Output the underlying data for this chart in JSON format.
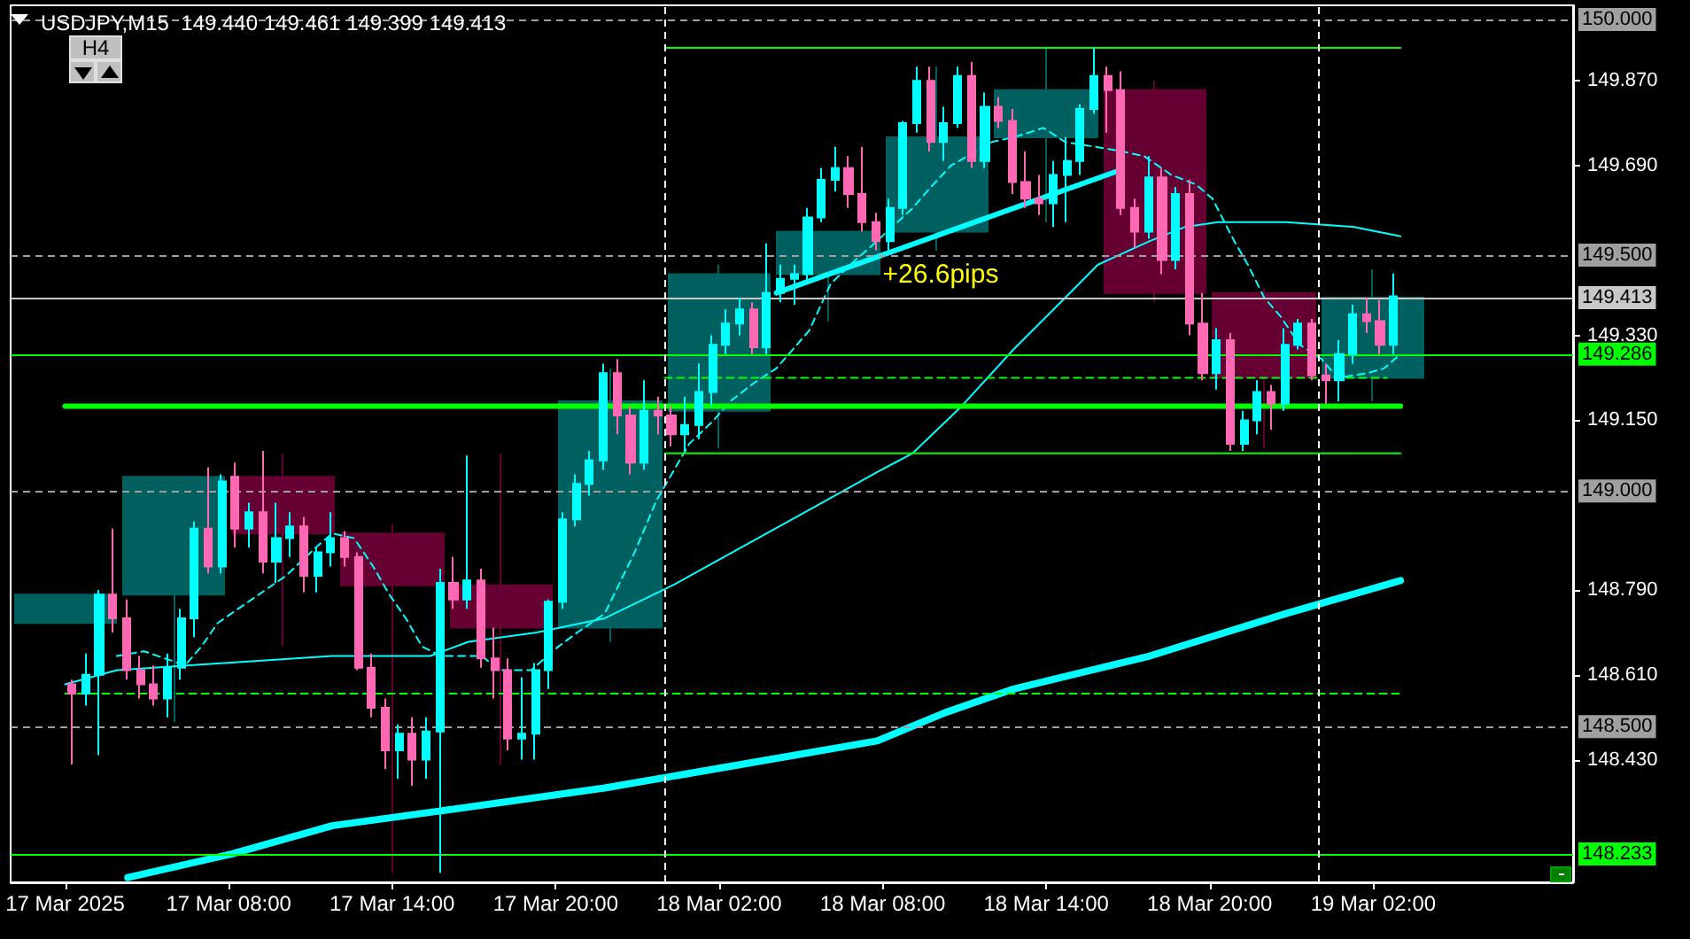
{
  "chart_data": {
    "type": "candlestick",
    "title": "USDJPY,M15  149.440 149.461 149.399 149.413",
    "xlim": [
      "2025-03-17T00:00",
      "2025-03-19T09:20"
    ],
    "ylim": [
      148.17,
      150.03
    ],
    "xticks": [
      {
        "value": "2025-03-17T02:00",
        "label": "17 Mar 2025"
      },
      {
        "value": "2025-03-17T08:00",
        "label": "17 Mar 08:00"
      },
      {
        "value": "2025-03-17T14:00",
        "label": "17 Mar 14:00"
      },
      {
        "value": "2025-03-17T20:00",
        "label": "17 Mar 20:00"
      },
      {
        "value": "2025-03-18T02:00",
        "label": "18 Mar 02:00"
      },
      {
        "value": "2025-03-18T08:00",
        "label": "18 Mar 08:00"
      },
      {
        "value": "2025-03-18T14:00",
        "label": "18 Mar 14:00"
      },
      {
        "value": "2025-03-18T20:00",
        "label": "18 Mar 20:00"
      },
      {
        "value": "2025-03-19T02:00",
        "label": "19 Mar 02:00"
      }
    ],
    "yticks": [
      {
        "value": 149.87,
        "label": "149.870"
      },
      {
        "value": 149.69,
        "label": "149.690"
      },
      {
        "value": 149.33,
        "label": "149.330"
      },
      {
        "value": 149.15,
        "label": "149.150"
      },
      {
        "value": 148.79,
        "label": "148.790"
      },
      {
        "value": 148.61,
        "label": "148.610"
      },
      {
        "value": 148.43,
        "label": "148.430"
      }
    ],
    "grid": false,
    "series": [
      {
        "colors": [
          "#006060",
          "#006060",
          "#660033",
          "#660033",
          "#660033",
          "#006060",
          "#006060",
          "#006060",
          "#006060",
          "#006060",
          "#660033",
          "#660033",
          "#006060"
        ],
        "x": [
          "2025-03-17T02:00",
          "2025-03-17T06:00",
          "2025-03-17T10:00",
          "2025-03-17T14:00",
          "2025-03-17T18:00",
          "2025-03-17T22:00",
          "2025-03-18T02:00",
          "2025-03-18T06:00",
          "2025-03-18T10:00",
          "2025-03-18T14:00",
          "2025-03-18T18:00",
          "2025-03-18T22:00",
          "2025-03-19T02:00"
        ],
        "ohlc": [
          [
            148.72,
            148.78,
            148.72,
            148.78
          ],
          [
            148.78,
            149.03,
            148.51,
            149.03
          ],
          [
            149.03,
            149.08,
            148.67,
            148.91
          ],
          [
            148.91,
            148.93,
            148.19,
            148.8
          ],
          [
            148.8,
            149.08,
            148.42,
            148.71
          ],
          [
            148.71,
            149.26,
            148.68,
            149.19
          ],
          [
            149.17,
            149.48,
            149.09,
            149.46
          ],
          [
            149.46,
            149.55,
            149.36,
            149.55
          ],
          [
            149.55,
            149.9,
            149.51,
            149.75
          ],
          [
            149.75,
            149.94,
            149.57,
            149.85
          ],
          [
            149.85,
            149.87,
            149.4,
            149.42
          ],
          [
            149.42,
            149.43,
            149.09,
            149.24
          ],
          [
            149.24,
            149.47,
            149.19,
            149.41
          ]
        ]
      },
      {
        "colors": [
          "#ff69b4",
          "#00ffff",
          "#00ffff",
          "#ff69b4",
          "#ff69b4",
          "#ff69b4",
          "#ff69b4",
          "#00ffff",
          "#00ffff",
          "#00ffff",
          "#ff69b4",
          "#00ffff",
          "#ff69b4",
          "#00ffff",
          "#ff69b4",
          "#00ffff",
          "#00ffff",
          "#ff69b4",
          "#00ffff",
          "#00ffff",
          "#ff69b4",
          "#ff69b4",
          "#ff69b4",
          "#ff69b4",
          "#00ffff",
          "#ff69b4",
          "#00ffff",
          "#00ffff",
          "#ff69b4",
          "#00ffff",
          "#ff69b4",
          "#ff69b4",
          "#ff69b4",
          "#00ffff",
          "#00ffff",
          "#00ffff",
          "#00ffff",
          "#00ffff",
          "#00ffff",
          "#00ffff",
          "#ff69b4",
          "#ff69b4",
          "#00ffff",
          "#ff69b4",
          "#ff69b4",
          "#00ffff",
          "#00ffff",
          "#00ffff",
          "#00ffff",
          "#00ffff",
          "#ff69b4",
          "#00ffff",
          "#00ffff",
          "#00ffff",
          "#00ffff",
          "#00ffff",
          "#00ffff",
          "#ff69b4",
          "#ff69b4",
          "#ff69b4",
          "#00ffff",
          "#00ffff",
          "#00ffff",
          "#ff69b4",
          "#00ffff",
          "#00ffff",
          "#ff69b4",
          "#00ffff",
          "#ff69b4",
          "#ff69b4",
          "#ff69b4",
          "#ff69b4",
          "#00ffff",
          "#00ffff",
          "#00ffff",
          "#00ffff",
          "#ff69b4",
          "#ff69b4",
          "#ff69b4",
          "#00ffff",
          "#ff69b4",
          "#00ffff",
          "#ff69b4",
          "#ff69b4",
          "#00ffff",
          "#ff69b4",
          "#00ffff",
          "#00ffff",
          "#ff69b4",
          "#00ffff",
          "#00ffff",
          "#ff69b4",
          "#ff69b4",
          "#00ffff",
          "#00ffff",
          "#ff69b4",
          "#ff69b4",
          "#00ffff"
        ],
        "x": [
          "2025-03-17T02:15",
          "2025-03-17T02:45",
          "2025-03-17T03:15",
          "2025-03-17T03:45",
          "2025-03-17T04:15",
          "2025-03-17T04:45",
          "2025-03-17T05:15",
          "2025-03-17T05:45",
          "2025-03-17T06:15",
          "2025-03-17T06:45",
          "2025-03-17T07:15",
          "2025-03-17T07:45",
          "2025-03-17T08:15",
          "2025-03-17T08:45",
          "2025-03-17T09:15",
          "2025-03-17T09:45",
          "2025-03-17T10:15",
          "2025-03-17T10:45",
          "2025-03-17T11:15",
          "2025-03-17T11:45",
          "2025-03-17T12:15",
          "2025-03-17T12:45",
          "2025-03-17T13:15",
          "2025-03-17T13:45",
          "2025-03-17T14:15",
          "2025-03-17T14:45",
          "2025-03-17T15:15",
          "2025-03-17T15:45",
          "2025-03-17T16:15",
          "2025-03-17T16:45",
          "2025-03-17T17:15",
          "2025-03-17T17:45",
          "2025-03-17T18:15",
          "2025-03-17T18:45",
          "2025-03-17T19:15",
          "2025-03-17T19:45",
          "2025-03-17T20:15",
          "2025-03-17T20:45",
          "2025-03-17T21:15",
          "2025-03-17T21:45",
          "2025-03-17T22:15",
          "2025-03-17T22:45",
          "2025-03-17T23:15",
          "2025-03-17T23:45",
          "2025-03-18T00:15",
          "2025-03-18T00:45",
          "2025-03-18T01:15",
          "2025-03-18T01:45",
          "2025-03-18T02:15",
          "2025-03-18T02:45",
          "2025-03-18T03:15",
          "2025-03-18T03:45",
          "2025-03-18T04:15",
          "2025-03-18T04:45",
          "2025-03-18T05:15",
          "2025-03-18T05:45",
          "2025-03-18T06:15",
          "2025-03-18T06:45",
          "2025-03-18T07:15",
          "2025-03-18T07:45",
          "2025-03-18T08:15",
          "2025-03-18T08:45",
          "2025-03-18T09:15",
          "2025-03-18T09:45",
          "2025-03-18T10:15",
          "2025-03-18T10:45",
          "2025-03-18T11:15",
          "2025-03-18T11:45",
          "2025-03-18T12:15",
          "2025-03-18T12:45",
          "2025-03-18T13:15",
          "2025-03-18T13:45",
          "2025-03-18T14:15",
          "2025-03-18T14:45",
          "2025-03-18T15:15",
          "2025-03-18T15:45",
          "2025-03-18T16:15",
          "2025-03-18T16:45",
          "2025-03-18T17:15",
          "2025-03-18T17:45",
          "2025-03-18T18:15",
          "2025-03-18T18:45",
          "2025-03-18T19:15",
          "2025-03-18T19:45",
          "2025-03-18T20:15",
          "2025-03-18T20:45",
          "2025-03-18T21:15",
          "2025-03-18T21:45",
          "2025-03-18T22:15",
          "2025-03-18T22:45",
          "2025-03-18T23:15",
          "2025-03-18T23:45",
          "2025-03-19T00:15",
          "2025-03-19T00:45",
          "2025-03-19T01:15",
          "2025-03-19T01:45",
          "2025-03-19T02:15",
          "2025-03-19T02:45"
        ],
        "ohlc": [
          [
            148.59,
            148.6,
            148.42,
            148.57
          ],
          [
            148.57,
            148.655,
            148.545,
            148.61
          ],
          [
            148.61,
            148.79,
            148.44,
            148.78
          ],
          [
            148.78,
            148.92,
            148.7,
            148.73
          ],
          [
            148.73,
            148.77,
            148.6,
            148.62
          ],
          [
            148.62,
            148.65,
            148.56,
            148.59
          ],
          [
            148.59,
            148.63,
            148.545,
            148.56
          ],
          [
            148.56,
            148.655,
            148.52,
            148.625
          ],
          [
            148.625,
            148.75,
            148.6,
            148.73
          ],
          [
            148.73,
            148.935,
            148.69,
            148.92
          ],
          [
            148.92,
            149.05,
            148.825,
            148.84
          ],
          [
            148.84,
            149.035,
            148.825,
            149.02
          ],
          [
            149.03,
            149.06,
            148.88,
            148.92
          ],
          [
            148.92,
            148.975,
            148.88,
            148.955
          ],
          [
            148.955,
            149.085,
            148.825,
            148.85
          ],
          [
            148.85,
            148.975,
            148.805,
            148.9
          ],
          [
            148.9,
            148.955,
            148.86,
            148.925
          ],
          [
            148.925,
            148.945,
            148.785,
            148.82
          ],
          [
            148.82,
            148.88,
            148.785,
            148.87
          ],
          [
            148.87,
            148.955,
            148.84,
            148.9
          ],
          [
            148.9,
            148.915,
            148.84,
            148.86
          ],
          [
            148.86,
            148.87,
            148.62,
            148.625
          ],
          [
            148.625,
            148.655,
            148.52,
            148.54
          ],
          [
            148.54,
            148.56,
            148.41,
            148.45
          ],
          [
            148.45,
            148.505,
            148.39,
            148.485
          ],
          [
            148.485,
            148.52,
            148.375,
            148.43
          ],
          [
            148.43,
            148.52,
            148.39,
            148.49
          ],
          [
            148.49,
            148.835,
            148.19,
            148.805
          ],
          [
            148.805,
            148.86,
            148.75,
            148.77
          ],
          [
            148.77,
            149.075,
            148.75,
            148.81
          ],
          [
            148.81,
            148.835,
            148.625,
            148.645
          ],
          [
            148.645,
            148.71,
            148.56,
            148.62
          ],
          [
            148.62,
            148.645,
            148.45,
            148.475
          ],
          [
            148.475,
            148.605,
            148.43,
            148.485
          ],
          [
            148.485,
            148.635,
            148.43,
            148.62
          ],
          [
            148.62,
            148.77,
            148.58,
            148.765
          ],
          [
            148.765,
            148.955,
            148.75,
            148.94
          ],
          [
            148.94,
            149.035,
            148.925,
            149.015
          ],
          [
            149.015,
            149.085,
            148.99,
            149.065
          ],
          [
            149.065,
            149.27,
            149.045,
            149.25
          ],
          [
            149.25,
            149.28,
            149.12,
            149.16
          ],
          [
            149.16,
            149.18,
            149.035,
            149.06
          ],
          [
            149.06,
            149.235,
            149.045,
            149.17
          ],
          [
            149.17,
            149.2,
            149.12,
            149.16
          ],
          [
            149.16,
            149.18,
            149.095,
            149.12
          ],
          [
            149.12,
            149.2,
            149.085,
            149.14
          ],
          [
            149.14,
            149.27,
            149.11,
            149.21
          ],
          [
            149.21,
            149.33,
            149.18,
            149.31
          ],
          [
            149.31,
            149.385,
            149.29,
            149.355
          ],
          [
            149.355,
            149.41,
            149.33,
            149.385
          ],
          [
            149.385,
            149.4,
            149.29,
            149.305
          ],
          [
            149.305,
            149.525,
            149.29,
            149.42
          ],
          [
            149.42,
            149.48,
            149.4,
            149.45
          ],
          [
            149.45,
            149.48,
            149.395,
            149.46
          ],
          [
            149.46,
            149.6,
            149.44,
            149.58
          ],
          [
            149.58,
            149.685,
            149.57,
            149.66
          ],
          [
            149.66,
            149.73,
            149.635,
            149.685
          ],
          [
            149.685,
            149.71,
            149.6,
            149.63
          ],
          [
            149.63,
            149.73,
            149.55,
            149.57
          ],
          [
            149.57,
            149.59,
            149.51,
            149.53
          ],
          [
            149.53,
            149.62,
            149.51,
            149.6
          ],
          [
            149.6,
            149.785,
            149.585,
            149.78
          ],
          [
            149.78,
            149.9,
            149.76,
            149.87
          ],
          [
            149.87,
            149.9,
            149.72,
            149.74
          ],
          [
            149.74,
            149.815,
            149.7,
            149.78
          ],
          [
            149.78,
            149.9,
            149.77,
            149.88
          ],
          [
            149.88,
            149.91,
            149.685,
            149.7
          ],
          [
            149.7,
            149.845,
            149.685,
            149.815
          ],
          [
            149.815,
            149.835,
            149.77,
            149.785
          ],
          [
            149.785,
            149.81,
            149.63,
            149.655
          ],
          [
            149.655,
            149.72,
            149.6,
            149.62
          ],
          [
            149.62,
            149.67,
            149.585,
            149.61
          ],
          [
            149.61,
            149.7,
            149.56,
            149.67
          ],
          [
            149.67,
            149.75,
            149.57,
            149.7
          ],
          [
            149.7,
            149.82,
            149.67,
            149.81
          ],
          [
            149.81,
            149.94,
            149.8,
            149.88
          ],
          [
            149.88,
            149.9,
            149.76,
            149.85
          ],
          [
            149.85,
            149.89,
            149.585,
            149.6
          ],
          [
            149.6,
            149.62,
            149.515,
            149.55
          ],
          [
            149.55,
            149.71,
            149.535,
            149.665
          ],
          [
            149.665,
            149.685,
            149.46,
            149.49
          ],
          [
            149.49,
            149.645,
            149.47,
            149.63
          ],
          [
            149.63,
            149.66,
            149.33,
            149.355
          ],
          [
            149.355,
            149.42,
            149.235,
            149.25
          ],
          [
            149.25,
            149.345,
            149.215,
            149.32
          ],
          [
            149.32,
            149.335,
            149.085,
            149.1
          ],
          [
            149.1,
            149.17,
            149.085,
            149.15
          ],
          [
            149.15,
            149.235,
            149.12,
            149.21
          ],
          [
            149.21,
            149.225,
            149.13,
            149.185
          ],
          [
            149.185,
            149.345,
            149.17,
            149.31
          ],
          [
            149.31,
            149.365,
            149.3,
            149.355
          ],
          [
            149.355,
            149.365,
            149.235,
            149.245
          ],
          [
            149.245,
            149.27,
            149.185,
            149.235
          ],
          [
            149.235,
            149.32,
            149.19,
            149.29
          ],
          [
            149.29,
            149.395,
            149.27,
            149.375
          ],
          [
            149.375,
            149.41,
            149.335,
            149.36
          ],
          [
            149.36,
            149.405,
            149.29,
            149.31
          ],
          [
            149.31,
            149.461,
            149.29,
            149.413
          ]
        ]
      },
      {
        "type": "line",
        "color": "#00ffff",
        "x": [
          "2025-03-17T04:18",
          "2025-03-17T08:06",
          "2025-03-17T11:48",
          "2025-03-17T15:36",
          "2025-03-17T21:48",
          "2025-03-18T02:48",
          "2025-03-18T07:48",
          "2025-03-18T10:18",
          "2025-03-18T12:48",
          "2025-03-18T17:48",
          "2025-03-18T22:48",
          "2025-03-19T03:00"
        ],
        "values": [
          148.18,
          148.23,
          148.29,
          148.32,
          148.37,
          148.42,
          148.47,
          148.53,
          148.58,
          148.65,
          148.74,
          148.81
        ]
      },
      {
        "type": "line",
        "color": "#00ffff",
        "x": [
          "2025-03-17T02:00",
          "2025-03-17T03:54",
          "2025-03-17T11:48",
          "2025-03-17T15:24",
          "2025-03-17T16:48",
          "2025-03-17T19:18",
          "2025-03-17T21:48",
          "2025-03-18T00:18",
          "2025-03-18T02:48",
          "2025-03-18T05:18",
          "2025-03-18T07:48",
          "2025-03-18T09:06",
          "2025-03-18T10:54",
          "2025-03-18T12:48",
          "2025-03-18T14:42",
          "2025-03-18T15:54",
          "2025-03-18T17:48",
          "2025-03-18T19:06",
          "2025-03-18T20:18",
          "2025-03-18T22:48",
          "2025-03-19T01:18",
          "2025-03-19T03:00"
        ],
        "values": [
          148.59,
          148.62,
          148.65,
          148.65,
          148.68,
          148.7,
          148.73,
          148.8,
          148.88,
          148.96,
          149.04,
          149.08,
          149.18,
          149.3,
          149.41,
          149.48,
          149.53,
          149.56,
          149.57,
          149.57,
          149.56,
          149.54
        ]
      },
      {
        "type": "line",
        "color": "#00ffff",
        "line_style": "dashed",
        "x": [
          "2025-03-17T03:54",
          "2025-03-17T04:54",
          "2025-03-17T06:24",
          "2025-03-17T07:00",
          "2025-03-17T07:36",
          "2025-03-17T08:06",
          "2025-03-17T09:06",
          "2025-03-17T10:06",
          "2025-03-17T11:12",
          "2025-03-17T11:48",
          "2025-03-17T12:36",
          "2025-03-17T13:18",
          "2025-03-17T13:54",
          "2025-03-17T14:30",
          "2025-03-17T15:06",
          "2025-03-17T15:48",
          "2025-03-17T16:36",
          "2025-03-17T17:18",
          "2025-03-17T17:54",
          "2025-03-17T18:30",
          "2025-03-17T19:06",
          "2025-03-17T20:06",
          "2025-03-17T20:48",
          "2025-03-17T21:48",
          "2025-03-17T22:54",
          "2025-03-17T23:42",
          "2025-03-18T00:18",
          "2025-03-18T00:54",
          "2025-03-18T01:48",
          "2025-03-18T02:24",
          "2025-03-18T03:18",
          "2025-03-18T04:06",
          "2025-03-18T04:42",
          "2025-03-18T05:18",
          "2025-03-18T06:06",
          "2025-03-18T07:00",
          "2025-03-18T07:36",
          "2025-03-18T09:06",
          "2025-03-18T09:42",
          "2025-03-18T10:30",
          "2025-03-18T11:06",
          "2025-03-18T12:00",
          "2025-03-18T12:48",
          "2025-03-18T13:54",
          "2025-03-18T14:42",
          "2025-03-18T15:48",
          "2025-03-18T16:48",
          "2025-03-18T17:36",
          "2025-03-18T18:36",
          "2025-03-18T19:30",
          "2025-03-18T20:06",
          "2025-03-18T20:54",
          "2025-03-18T21:24",
          "2025-03-18T22:00",
          "2025-03-18T22:36",
          "2025-03-18T23:18",
          "2025-03-19T00:06",
          "2025-03-19T00:42",
          "2025-03-19T01:48",
          "2025-03-19T02:24",
          "2025-03-19T03:00"
        ],
        "values": [
          148.65,
          148.66,
          148.63,
          148.67,
          148.72,
          148.74,
          148.78,
          148.82,
          148.88,
          148.91,
          148.9,
          148.84,
          148.78,
          148.73,
          148.67,
          148.65,
          148.65,
          148.65,
          148.62,
          148.62,
          148.62,
          148.67,
          148.7,
          148.74,
          148.87,
          148.98,
          149.04,
          149.1,
          149.15,
          149.19,
          149.23,
          149.26,
          149.3,
          149.34,
          149.44,
          149.49,
          149.52,
          149.6,
          149.64,
          149.69,
          149.71,
          149.74,
          149.75,
          149.77,
          149.74,
          149.73,
          149.72,
          149.71,
          149.67,
          149.65,
          149.62,
          149.53,
          149.48,
          149.41,
          149.37,
          149.31,
          149.28,
          149.24,
          149.25,
          149.26,
          149.29
        ]
      },
      {
        "type": "line",
        "color": "#00ffff",
        "x": [
          "2025-03-18T04:06",
          "2025-03-18T16:42"
        ],
        "values": [
          149.42,
          149.68
        ]
      },
      {
        "type": "line",
        "color": "#00ff00",
        "x": [
          "2025-03-18T00:00",
          "2025-03-19T03:00"
        ],
        "values": [
          149.94,
          149.94
        ]
      },
      {
        "type": "line",
        "color": "#00ff00",
        "x": [
          "2025-03-17T02:00",
          "2025-03-19T03:00"
        ],
        "values": [
          149.18,
          149.18
        ]
      },
      {
        "type": "line",
        "color": "#00ff00",
        "x": [
          "2025-03-18T00:00",
          "2025-03-19T03:00"
        ],
        "values": [
          149.08,
          149.08
        ]
      },
      {
        "type": "line",
        "color": "#00ff00",
        "line_style": "dashed",
        "x": [
          "2025-03-17T02:00",
          "2025-03-19T03:00"
        ],
        "values": [
          148.57,
          148.57
        ]
      },
      {
        "type": "line",
        "color": "#00ff00",
        "line_style": "dashed",
        "x": [
          "2025-03-18T00:00",
          "2025-03-19T02:30"
        ],
        "values": [
          149.24,
          149.24
        ]
      }
    ],
    "ref_lines": [
      {
        "axis": "y",
        "value": 150.0,
        "label": "150.000",
        "color": "#a0a0a0",
        "line_style": "dashed"
      },
      {
        "axis": "y",
        "value": 149.5,
        "label": "149.500",
        "color": "#a0a0a0",
        "line_style": "dashed"
      },
      {
        "axis": "y",
        "value": 149.413,
        "label": "149.413",
        "color": "#c8c8c8"
      },
      {
        "axis": "y",
        "value": 149.286,
        "label": "149.286",
        "color": "#00ff00"
      },
      {
        "axis": "y",
        "value": 149.0,
        "label": "149.000",
        "color": "#a0a0a0",
        "line_style": "dashed"
      },
      {
        "axis": "y",
        "value": 148.5,
        "label": "148.500",
        "color": "#a0a0a0",
        "line_style": "dashed"
      },
      {
        "axis": "y",
        "value": 148.233,
        "label": "148.233",
        "color": "#00ff00"
      },
      {
        "axis": "x",
        "value": "2025-03-18T00:00",
        "label": null,
        "color": "#ffffff",
        "line_style": "dashed"
      },
      {
        "axis": "x",
        "value": "2025-03-19T00:00",
        "label": null,
        "color": "#ffffff",
        "line_style": "dashed"
      }
    ],
    "annotations": [
      "H4",
      "+26.6pips"
    ]
  }
}
